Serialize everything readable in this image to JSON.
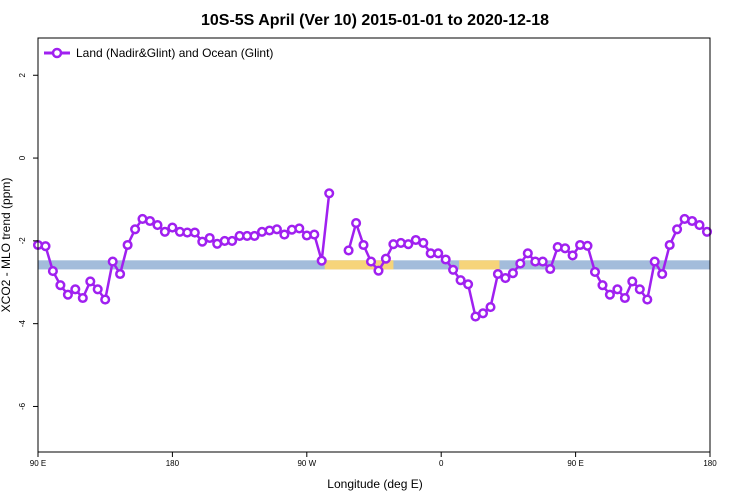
{
  "chart_data": {
    "type": "line",
    "title": "10S-5S April (Ver 10)   2015-01-01 to 2020-12-18",
    "xlabel": "Longitude (deg E)",
    "ylabel": "XCO2 - MLO trend (ppm)",
    "xlim": [
      0,
      450
    ],
    "ylim": [
      -7.1,
      2.9
    ],
    "x_ticks": [
      {
        "value": 0,
        "label": "90 E"
      },
      {
        "value": 90,
        "label": "180"
      },
      {
        "value": 180,
        "label": "90 W"
      },
      {
        "value": 270,
        "label": "0"
      },
      {
        "value": 360,
        "label": "90 E"
      },
      {
        "value": 450,
        "label": "180"
      }
    ],
    "y_ticks": [
      {
        "value": 2,
        "label": "2"
      },
      {
        "value": 0,
        "label": "0"
      },
      {
        "value": -2,
        "label": "-2"
      },
      {
        "value": -4,
        "label": "-4"
      },
      {
        "value": -6,
        "label": "-6"
      }
    ],
    "legend": {
      "position": "top-left"
    },
    "colors": {
      "series": "#a020f0",
      "ocean": "#a3bcdb",
      "land": "#f6d47a"
    },
    "surface_band": {
      "y_center": -2.58,
      "height": 0.22,
      "land_segments": [
        [
          192,
          238
        ],
        [
          282,
          309
        ]
      ]
    },
    "series": [
      {
        "name": "Land (Nadir&Glint) and Ocean (Glint)",
        "points": [
          [
            0,
            -2.1
          ],
          [
            5,
            -2.13
          ],
          [
            10,
            -2.73
          ],
          [
            15,
            -3.07
          ],
          [
            20,
            -3.3
          ],
          [
            25,
            -3.17
          ],
          [
            30,
            -3.38
          ],
          [
            35,
            -2.98
          ],
          [
            40,
            -3.17
          ],
          [
            45,
            -3.42
          ],
          [
            50,
            -2.5
          ],
          [
            55,
            -2.8
          ],
          [
            60,
            -2.1
          ],
          [
            65,
            -1.72
          ],
          [
            70,
            -1.47
          ],
          [
            75,
            -1.52
          ],
          [
            80,
            -1.62
          ],
          [
            85,
            -1.78
          ],
          [
            90,
            -1.68
          ],
          [
            95,
            -1.78
          ],
          [
            100,
            -1.8
          ],
          [
            105,
            -1.8
          ],
          [
            110,
            -2.02
          ],
          [
            115,
            -1.93
          ],
          [
            120,
            -2.07
          ],
          [
            125,
            -2.0
          ],
          [
            130,
            -2.0
          ],
          [
            135,
            -1.88
          ],
          [
            140,
            -1.88
          ],
          [
            145,
            -1.88
          ],
          [
            150,
            -1.78
          ],
          [
            155,
            -1.75
          ],
          [
            160,
            -1.72
          ],
          [
            165,
            -1.85
          ],
          [
            170,
            -1.73
          ],
          [
            175,
            -1.7
          ],
          [
            180,
            -1.87
          ],
          [
            185,
            -1.85
          ],
          [
            190,
            -2.48
          ],
          [
            195,
            -0.85
          ],
          null,
          [
            208,
            -2.23
          ],
          [
            213,
            -1.57
          ],
          [
            218,
            -2.1
          ],
          [
            223,
            -2.5
          ],
          [
            228,
            -2.72
          ],
          [
            233,
            -2.43
          ],
          [
            238,
            -2.08
          ],
          [
            243,
            -2.05
          ],
          [
            248,
            -2.08
          ],
          [
            253,
            -1.98
          ],
          [
            258,
            -2.05
          ],
          [
            263,
            -2.3
          ],
          [
            268,
            -2.3
          ],
          [
            273,
            -2.45
          ],
          [
            278,
            -2.7
          ],
          [
            283,
            -2.95
          ],
          [
            288,
            -3.05
          ],
          [
            293,
            -3.83
          ],
          [
            298,
            -3.75
          ],
          [
            303,
            -3.6
          ],
          [
            308,
            -2.8
          ],
          [
            313,
            -2.9
          ],
          [
            318,
            -2.78
          ],
          [
            323,
            -2.55
          ],
          [
            328,
            -2.3
          ],
          [
            333,
            -2.5
          ],
          [
            338,
            -2.5
          ],
          [
            343,
            -2.68
          ],
          [
            348,
            -2.15
          ],
          [
            353,
            -2.18
          ],
          [
            358,
            -2.35
          ],
          [
            363,
            -2.1
          ],
          [
            368,
            -2.12
          ],
          [
            373,
            -2.75
          ],
          [
            378,
            -3.07
          ],
          [
            383,
            -3.3
          ],
          [
            388,
            -3.17
          ],
          [
            393,
            -3.38
          ],
          [
            398,
            -2.98
          ],
          [
            403,
            -3.17
          ],
          [
            408,
            -3.42
          ],
          [
            413,
            -2.5
          ],
          [
            418,
            -2.8
          ],
          [
            423,
            -2.1
          ],
          [
            428,
            -1.72
          ],
          [
            433,
            -1.47
          ],
          [
            438,
            -1.52
          ],
          [
            443,
            -1.62
          ],
          [
            448,
            -1.78
          ]
        ]
      }
    ]
  }
}
